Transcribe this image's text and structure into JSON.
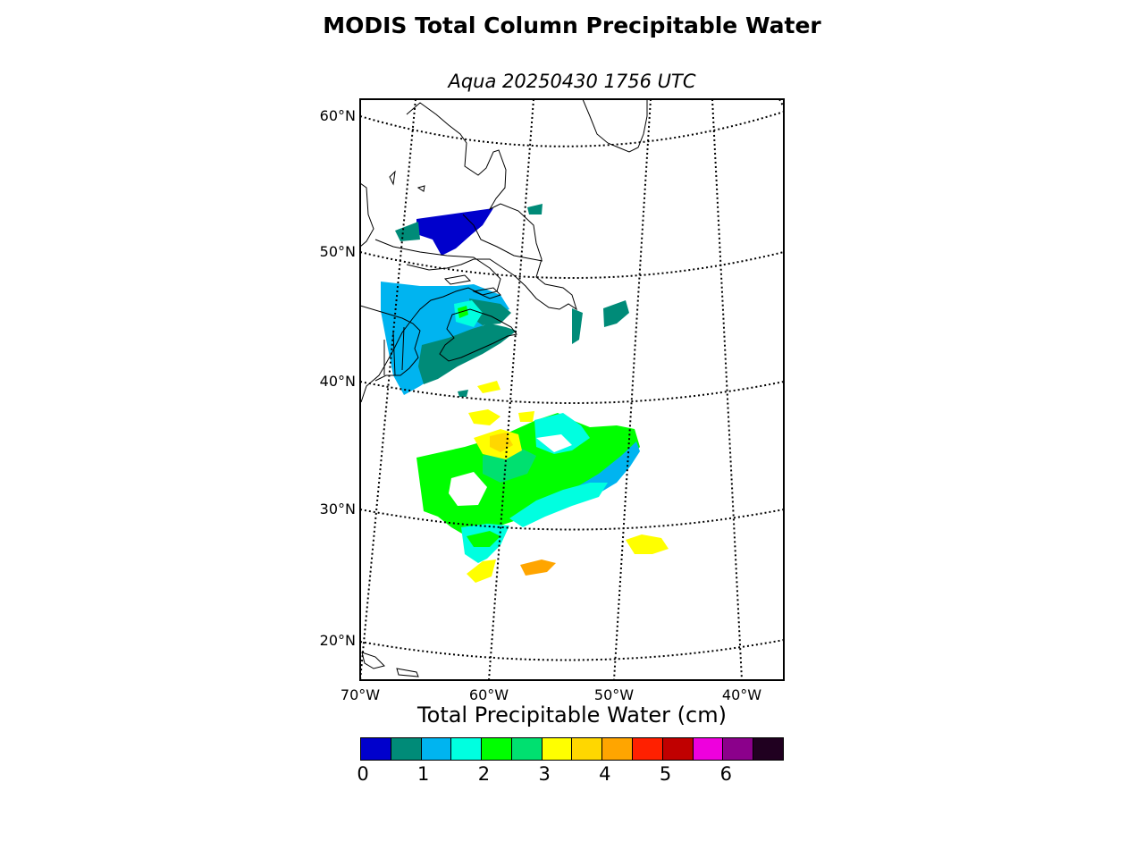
{
  "title": "MODIS Total Column Precipitable Water",
  "subtitle": "Aqua 20250430 1756 UTC",
  "map": {
    "lat_labels": [
      "60°N",
      "50°N",
      "40°N",
      "30°N",
      "20°N"
    ],
    "lon_labels": [
      "70°W",
      "60°W",
      "50°W",
      "40°W"
    ],
    "extent": {
      "lon_min": -70,
      "lon_max": -37,
      "lat_min": 17,
      "lat_max": 61
    }
  },
  "colorbar": {
    "label": "Total Precipitable Water (cm)",
    "tick_labels": [
      "0",
      "1",
      "2",
      "3",
      "4",
      "5",
      "6"
    ],
    "min": 0,
    "max": 7,
    "step": 0.5,
    "colors": [
      "#0000cc",
      "#008b78",
      "#00b4f0",
      "#00ffe0",
      "#00ff00",
      "#00e070",
      "#ffff00",
      "#ffd700",
      "#ffa500",
      "#ff2000",
      "#c00000",
      "#ee00dd",
      "#8b008b",
      "#200020"
    ]
  },
  "colors": {
    "frame": "#000000",
    "graticule": "#000000",
    "coastline": "#000000"
  }
}
